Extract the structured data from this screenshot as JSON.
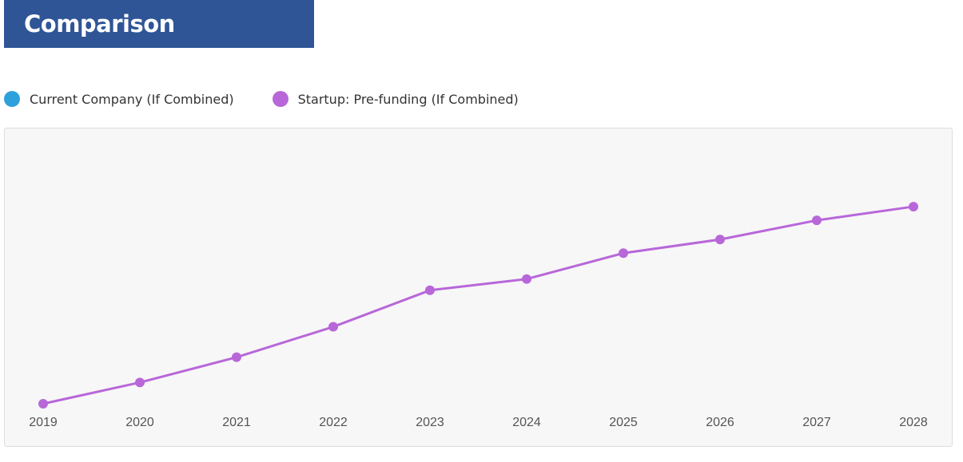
{
  "header": {
    "title": "Comparison"
  },
  "legend": {
    "items": [
      {
        "label": "Current Company (If Combined)",
        "color": "#2ea1dc"
      },
      {
        "label": "Startup: Pre-funding (If Combined)",
        "color": "#b867d9"
      }
    ]
  },
  "chart_data": {
    "type": "line",
    "x": [
      "2019",
      "2020",
      "2021",
      "2022",
      "2023",
      "2024",
      "2025",
      "2026",
      "2027",
      "2028"
    ],
    "series": [
      {
        "name": "Startup: Pre-funding (If Combined)",
        "color": "#b867d9",
        "values": [
          0,
          7,
          15.3,
          25.3,
          37.3,
          41,
          49.5,
          54,
          60.3,
          64.8
        ]
      }
    ],
    "ylim": [
      0,
      80
    ],
    "grid": false,
    "legend_position": "top-left"
  }
}
